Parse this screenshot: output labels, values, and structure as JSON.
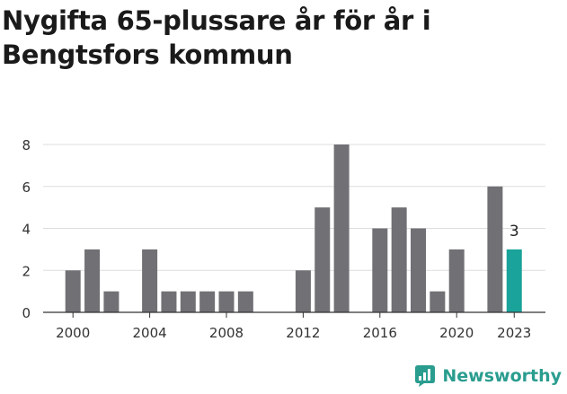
{
  "title": "Nygifta 65-plussare år för år i Bengtsfors kommun",
  "brand": {
    "name": "Newsworthy",
    "icon": "newsworthy-logo-icon",
    "color": "#2a9d8f"
  },
  "chart_data": {
    "type": "bar",
    "x": [
      2000,
      2001,
      2002,
      2003,
      2004,
      2005,
      2006,
      2007,
      2008,
      2009,
      2010,
      2011,
      2012,
      2013,
      2014,
      2015,
      2016,
      2017,
      2018,
      2019,
      2020,
      2021,
      2022,
      2023
    ],
    "values": [
      2,
      3,
      1,
      0,
      3,
      1,
      1,
      1,
      1,
      1,
      0,
      0,
      2,
      5,
      8,
      0,
      4,
      5,
      4,
      1,
      3,
      0,
      6,
      3
    ],
    "xticks": [
      "2000",
      "2004",
      "2008",
      "2012",
      "2016",
      "2020",
      "2023"
    ],
    "yticks": [
      0,
      2,
      4,
      6,
      8
    ],
    "ylim": [
      0,
      8
    ],
    "grid": true,
    "highlight": {
      "x": 2023,
      "label": "3",
      "color": "#1aa39a"
    },
    "bar_color": "#717075"
  }
}
